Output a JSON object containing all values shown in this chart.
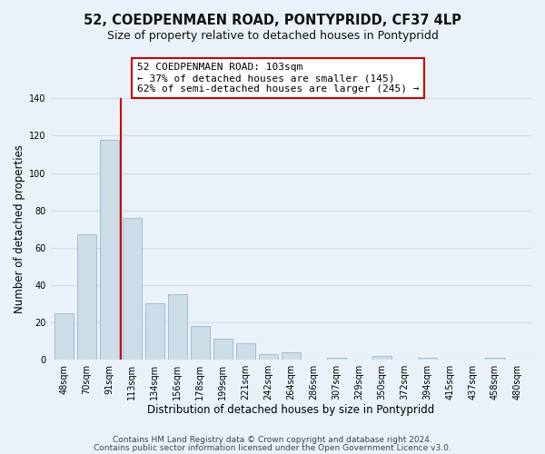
{
  "title": "52, COEDPENMAEN ROAD, PONTYPRIDD, CF37 4LP",
  "subtitle": "Size of property relative to detached houses in Pontypridd",
  "xlabel": "Distribution of detached houses by size in Pontypridd",
  "ylabel": "Number of detached properties",
  "bar_labels": [
    "48sqm",
    "70sqm",
    "91sqm",
    "113sqm",
    "134sqm",
    "156sqm",
    "178sqm",
    "199sqm",
    "221sqm",
    "242sqm",
    "264sqm",
    "286sqm",
    "307sqm",
    "329sqm",
    "350sqm",
    "372sqm",
    "394sqm",
    "415sqm",
    "437sqm",
    "458sqm",
    "480sqm"
  ],
  "bar_values": [
    25,
    67,
    118,
    76,
    30,
    35,
    18,
    11,
    9,
    3,
    4,
    0,
    1,
    0,
    2,
    0,
    1,
    0,
    0,
    1,
    0
  ],
  "bar_color": "#ccdde8",
  "bar_edge_color": "#9ab5cc",
  "vline_color": "#cc0000",
  "vline_pos": 2.5,
  "annotation_text": "52 COEDPENMAEN ROAD: 103sqm\n← 37% of detached houses are smaller (145)\n62% of semi-detached houses are larger (245) →",
  "annotation_box_color": "#ffffff",
  "annotation_box_edge": "#cc0000",
  "ylim": [
    0,
    140
  ],
  "yticks": [
    0,
    20,
    40,
    60,
    80,
    100,
    120,
    140
  ],
  "footer_line1": "Contains HM Land Registry data © Crown copyright and database right 2024.",
  "footer_line2": "Contains public sector information licensed under the Open Government Licence v3.0.",
  "background_color": "#eaf1f8",
  "plot_background": "#eaf1f8",
  "grid_color": "#d0dce8",
  "title_fontsize": 10.5,
  "subtitle_fontsize": 9,
  "tick_fontsize": 7,
  "axis_label_fontsize": 8.5,
  "annotation_fontsize": 8,
  "footer_fontsize": 6.5
}
